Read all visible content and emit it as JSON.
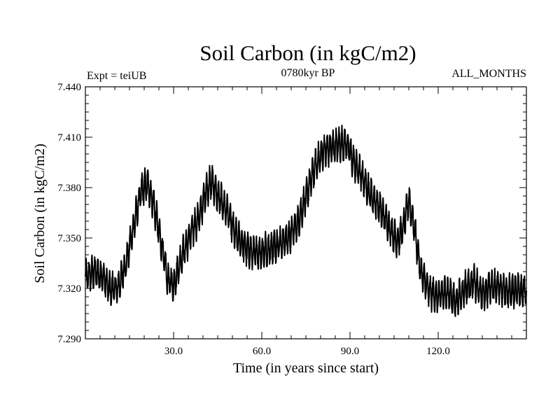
{
  "chart_data": {
    "type": "line",
    "title": "Soil Carbon (in kgC/m2)",
    "subtitle": "0780kyr BP",
    "left_note": "Expt = teiUB",
    "right_note": "ALL_MONTHS",
    "xlabel": "Time (in years since start)",
    "ylabel": "Soil Carbon (in kgC/m2)",
    "xlim": [
      0,
      150
    ],
    "ylim": [
      7.29,
      7.44
    ],
    "x_ticks": [
      30,
      60,
      90,
      120
    ],
    "x_tick_labels": [
      "30.0",
      "60.0",
      "90.0",
      "120.0"
    ],
    "y_ticks": [
      7.29,
      7.32,
      7.35,
      7.38,
      7.41,
      7.44
    ],
    "y_tick_labels": [
      "7.290",
      "7.320",
      "7.350",
      "7.380",
      "7.410",
      "7.440"
    ],
    "trend_x": [
      0,
      3,
      6,
      8,
      11,
      14,
      17,
      19,
      21,
      23,
      26,
      28,
      30,
      33,
      36,
      39,
      41,
      43,
      45,
      48,
      51,
      54,
      57,
      60,
      63,
      66,
      69,
      72,
      75,
      78,
      81,
      84,
      87,
      89,
      91,
      94,
      97,
      100,
      103,
      106,
      108,
      110,
      112,
      114,
      117,
      120,
      123,
      126,
      129,
      132,
      135,
      138,
      141,
      144,
      147,
      150
    ],
    "trend_y": [
      7.326,
      7.33,
      7.327,
      7.32,
      7.32,
      7.336,
      7.362,
      7.378,
      7.382,
      7.372,
      7.345,
      7.325,
      7.322,
      7.34,
      7.353,
      7.364,
      7.378,
      7.384,
      7.375,
      7.367,
      7.352,
      7.345,
      7.341,
      7.342,
      7.344,
      7.347,
      7.35,
      7.358,
      7.374,
      7.392,
      7.402,
      7.404,
      7.406,
      7.406,
      7.396,
      7.387,
      7.376,
      7.368,
      7.358,
      7.348,
      7.355,
      7.373,
      7.355,
      7.33,
      7.318,
      7.315,
      7.318,
      7.312,
      7.32,
      7.324,
      7.316,
      7.322,
      7.32,
      7.318,
      7.32,
      7.318
    ],
    "seasonal_amplitude": 0.0085,
    "cycles_per_year": 1,
    "noise_amplitude": 0.003
  }
}
